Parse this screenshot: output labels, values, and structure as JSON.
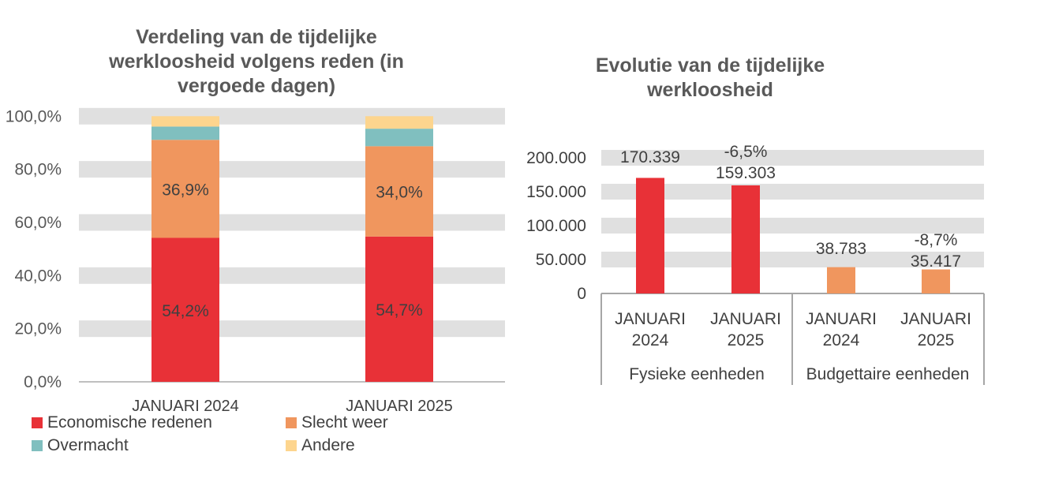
{
  "chart_data": [
    {
      "type": "bar",
      "stacked": true,
      "title": "Verdeling van de tijdelijke werkloosheid volgens reden (in vergoede dagen)",
      "categories": [
        "JANUARI 2024",
        "JANUARI 2025"
      ],
      "ylim": [
        0,
        100
      ],
      "yticks": [
        "0,0%",
        "20,0%",
        "40,0%",
        "60,0%",
        "80,0%",
        "100,0%"
      ],
      "grid": true,
      "legend": "bottom",
      "series": [
        {
          "name": "Economische redenen",
          "values": [
            54.2,
            54.7
          ],
          "labels": [
            "54,2%",
            "54,7%"
          ],
          "color": "#E83137"
        },
        {
          "name": "Slecht weer",
          "values": [
            36.9,
            34.0
          ],
          "labels": [
            "36,9%",
            "34,0%"
          ],
          "color": "#F0965E"
        },
        {
          "name": "Overmacht",
          "values": [
            5.0,
            6.6
          ],
          "color": "#80BFBF"
        },
        {
          "name": "Andere",
          "values": [
            3.9,
            4.7
          ],
          "color": "#FDD58E"
        }
      ]
    },
    {
      "type": "bar",
      "title": "Evolutie van de tijdelijke werkloosheid",
      "ylim": [
        0,
        200000
      ],
      "yticks": [
        "0",
        "50.000",
        "100.000",
        "150.000",
        "200.000"
      ],
      "grid": true,
      "groups": [
        "Fysieke eenheden",
        "Budgettaire eenheden"
      ],
      "categories": [
        "JANUARI 2024",
        "JANUARI 2025",
        "JANUARI 2024",
        "JANUARI 2025"
      ],
      "values": [
        170339,
        159303,
        38783,
        35417
      ],
      "labels": [
        "170.339",
        "159.303",
        "38.783",
        "35.417"
      ],
      "changes": [
        "",
        "-6,5%",
        "",
        "-8,7%"
      ],
      "colors": [
        "#E83137",
        "#E83137",
        "#F0965E",
        "#F0965E"
      ]
    }
  ]
}
